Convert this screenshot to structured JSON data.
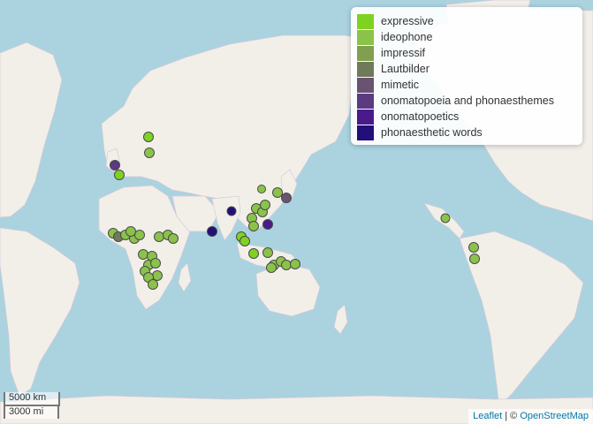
{
  "legend": {
    "items": [
      {
        "label": "expressive",
        "color": "#7ed321"
      },
      {
        "label": "ideophone",
        "color": "#8bc34a"
      },
      {
        "label": "impressif",
        "color": "#80a050"
      },
      {
        "label": "Lautbilder",
        "color": "#707a5a"
      },
      {
        "label": "mimetic",
        "color": "#6a5370"
      },
      {
        "label": "onomatopoeia and phonaesthemes",
        "color": "#5b3a82"
      },
      {
        "label": "onomatopoetics",
        "color": "#4a1a8a"
      },
      {
        "label": "phonaesthetic words",
        "color": "#230f7a"
      }
    ]
  },
  "scale": {
    "km_label": "5000 km",
    "mi_label": "3000 mi"
  },
  "attribution": {
    "leaflet": "Leaflet",
    "separator": " | © ",
    "osm": "OpenStreetMap"
  },
  "colors": {
    "sea": "#aad3df",
    "land": "#f2efe9",
    "border": "#c9a3c6",
    "marker_stroke": "#4a4a4a"
  }
}
